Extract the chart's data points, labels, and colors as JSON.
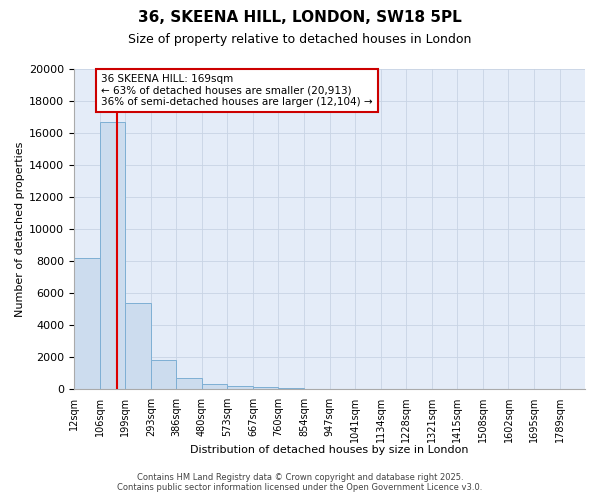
{
  "title": "36, SKEENA HILL, LONDON, SW18 5PL",
  "subtitle": "Size of property relative to detached houses in London",
  "xlabel": "Distribution of detached houses by size in London",
  "ylabel": "Number of detached properties",
  "bin_edges": [
    12,
    106,
    199,
    293,
    386,
    480,
    573,
    667,
    760,
    854,
    947,
    1041,
    1134,
    1228,
    1321,
    1415,
    1508,
    1602,
    1695,
    1789,
    1882
  ],
  "bin_counts": [
    8200,
    16700,
    5400,
    1800,
    700,
    340,
    210,
    130,
    70,
    0,
    0,
    0,
    0,
    0,
    0,
    0,
    0,
    0,
    0,
    0
  ],
  "bar_facecolor": "#ccdcee",
  "bar_edgecolor": "#7eafd4",
  "property_size": 169,
  "annotation_text": "36 SKEENA HILL: 169sqm\n← 63% of detached houses are smaller (20,913)\n36% of semi-detached houses are larger (12,104) →",
  "red_line_color": "#dd0000",
  "annotation_border_color": "#cc0000",
  "ylim": [
    0,
    20000
  ],
  "yticks": [
    0,
    2000,
    4000,
    6000,
    8000,
    10000,
    12000,
    14000,
    16000,
    18000,
    20000
  ],
  "grid_color": "#c8d4e4",
  "background_color": "#e4ecf8",
  "footer_line1": "Contains HM Land Registry data © Crown copyright and database right 2025.",
  "footer_line2": "Contains public sector information licensed under the Open Government Licence v3.0.",
  "title_fontsize": 11,
  "subtitle_fontsize": 9,
  "ylabel_fontsize": 8,
  "xlabel_fontsize": 8,
  "ytick_fontsize": 8,
  "xtick_fontsize": 7
}
